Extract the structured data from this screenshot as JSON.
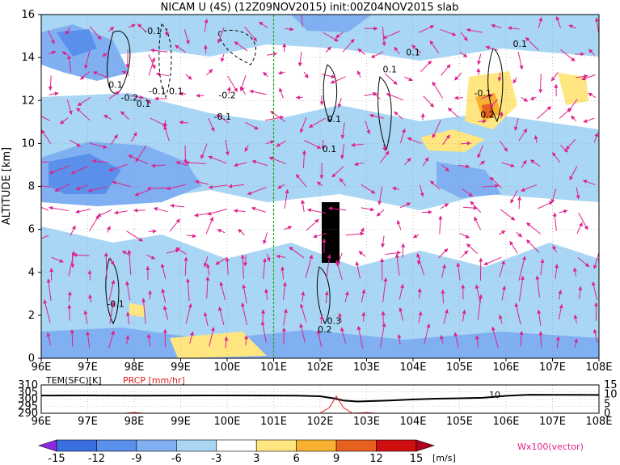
{
  "chart_data": {
    "type": "heatmap",
    "title": "NICAM  U  (4S)  (12Z09NOV2015)  init:00Z04NOV2015  slab",
    "xlabel": "",
    "ylabel": "ALTITUDE [km]",
    "x_tick_labels": [
      "96E",
      "97E",
      "98E",
      "99E",
      "100E",
      "101E",
      "102E",
      "103E",
      "104E",
      "105E",
      "106E",
      "107E",
      "108E"
    ],
    "x_values": [
      96,
      97,
      98,
      99,
      100,
      101,
      102,
      103,
      104,
      105,
      106,
      107,
      108
    ],
    "xlim": [
      96,
      108
    ],
    "y_tick_labels": [
      "0",
      "2",
      "4",
      "6",
      "8",
      "10",
      "12",
      "14",
      "16"
    ],
    "y_values": [
      0,
      2,
      4,
      6,
      8,
      10,
      12,
      14,
      16
    ],
    "ylim": [
      0,
      16
    ],
    "grid": "dotted",
    "marker_line_lon": 101,
    "marker_line_color": "#22aa22",
    "vector_color": "#e0208a",
    "vector_label": "Wx100(vector)",
    "contour_labels": [
      {
        "text": "-0.1",
        "lon": 98.4,
        "alt": 15.1
      },
      {
        "text": "0.1",
        "lon": 97.6,
        "alt": 12.6
      },
      {
        "text": "-0.2",
        "lon": 97.9,
        "alt": 12.0
      },
      {
        "text": "-0.1",
        "lon": 98.5,
        "alt": 12.3
      },
      {
        "text": "0.1",
        "lon": 98.9,
        "alt": 12.3
      },
      {
        "text": "0.1",
        "lon": 98.2,
        "alt": 11.7
      },
      {
        "text": "-0.2",
        "lon": 100.0,
        "alt": 12.1
      },
      {
        "text": "-0.1",
        "lon": 99.9,
        "alt": 11.1
      },
      {
        "text": "0.1",
        "lon": 102.3,
        "alt": 11.0
      },
      {
        "text": "0.1",
        "lon": 103.5,
        "alt": 13.3
      },
      {
        "text": "0.1",
        "lon": 104.0,
        "alt": 14.1
      },
      {
        "text": "0.1",
        "lon": 106.3,
        "alt": 14.5
      },
      {
        "text": "-0.1",
        "lon": 105.5,
        "alt": 12.2
      },
      {
        "text": "0.2",
        "lon": 105.6,
        "alt": 11.2
      },
      {
        "text": "0.1",
        "lon": 102.2,
        "alt": 9.6
      },
      {
        "text": "-0.1",
        "lon": 97.6,
        "alt": 2.4
      },
      {
        "text": "0.3",
        "lon": 102.3,
        "alt": 1.6
      },
      {
        "text": "0.2",
        "lon": 102.1,
        "alt": 1.2
      }
    ],
    "colorbar": {
      "levels": [
        "-15",
        "-12",
        "-9",
        "-6",
        "-3",
        "3",
        "6",
        "9",
        "12",
        "15"
      ],
      "colors": [
        "#8a2be2",
        "#3a6fe0",
        "#5a8fec",
        "#80b0f2",
        "#a8d6f4",
        "#ffffff",
        "#ffe680",
        "#f7b030",
        "#e86020",
        "#d01010",
        "#b00020"
      ],
      "unit": "[m/s]"
    },
    "lower_panel": {
      "label_tem": "TEM(SFC)[K]",
      "label_prcp": "PRCP [mm/hr]",
      "left_ticks": [
        "310",
        "305",
        "300",
        "295",
        "290"
      ],
      "right_ticks": [
        "15",
        "10",
        "5",
        "0"
      ],
      "annotation": "10",
      "tem_color": "#000000",
      "prcp_color": "#e02020",
      "tem_series": [
        [
          96,
          302.5
        ],
        [
          97,
          302.6
        ],
        [
          98,
          302.4
        ],
        [
          99,
          302.5
        ],
        [
          100,
          302.6
        ],
        [
          101,
          302.5
        ],
        [
          101.5,
          302.4
        ],
        [
          102.0,
          302.0
        ],
        [
          102.3,
          300.5
        ],
        [
          102.5,
          299.0
        ],
        [
          102.8,
          298.3
        ],
        [
          103,
          298.5
        ],
        [
          103.5,
          299.0
        ],
        [
          104,
          299.8
        ],
        [
          104.5,
          300.3
        ],
        [
          105,
          300.6
        ],
        [
          105.5,
          300.9
        ],
        [
          106,
          302.3
        ],
        [
          106.5,
          303.1
        ],
        [
          107,
          303.0
        ],
        [
          107.5,
          303.0
        ],
        [
          108,
          302.9
        ]
      ],
      "prcp_series": [
        [
          96,
          0
        ],
        [
          97.8,
          0
        ],
        [
          98.0,
          0.4
        ],
        [
          98.2,
          0
        ],
        [
          102.0,
          0
        ],
        [
          102.2,
          3
        ],
        [
          102.35,
          9
        ],
        [
          102.5,
          3
        ],
        [
          102.7,
          0
        ],
        [
          103.0,
          0.3
        ],
        [
          103.2,
          0
        ],
        [
          108,
          0
        ]
      ]
    }
  }
}
